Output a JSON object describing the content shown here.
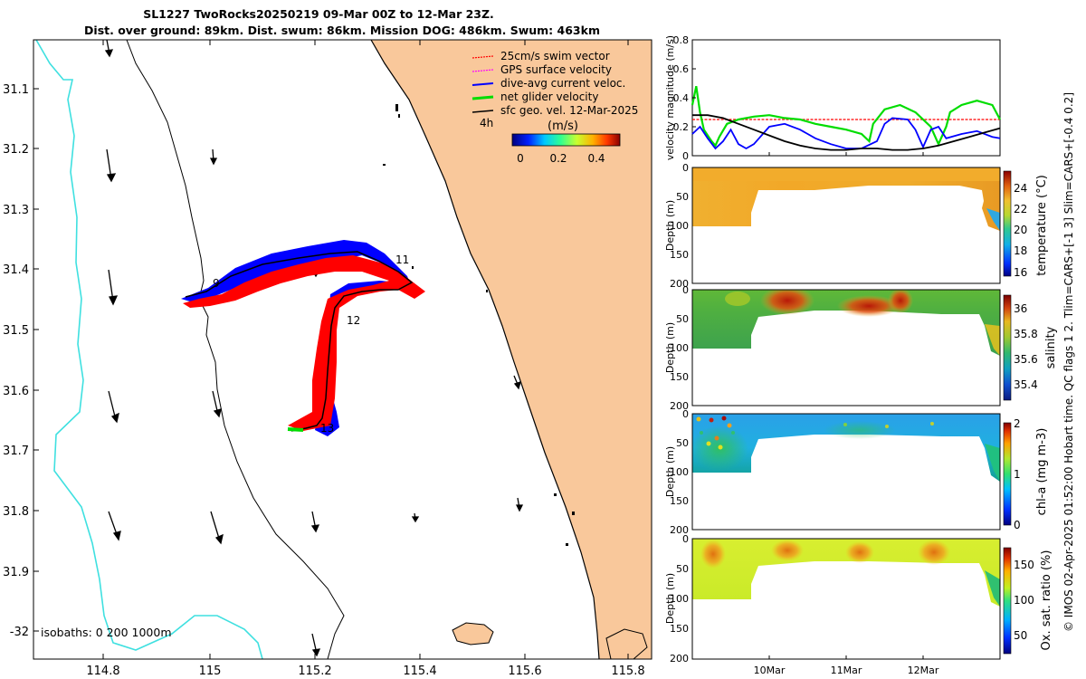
{
  "title_line1": "SL1227 TwoRocks20250219 09-Mar 00Z to 12-Mar 23Z.",
  "title_line2": "Dist. over ground: 89km. Dist. swum: 86km. Mission DOG: 486km. Swum: 463km",
  "side_text": "© IMOS 02-Apr-2025 01:52:00 Hobart time. QC flags 1  2. Tlim=CARS+[-1 3] Slim=CARS+[-0.4 0.2]",
  "colors": {
    "land": "#f9c89b",
    "coast_line": "#000000",
    "isobath": "#3fe0e0",
    "track_red": "#ff0000",
    "track_blue": "#0000ff",
    "swim_vector": "#ff0000",
    "gps_velocity": "#ff00ff",
    "dive_avg": "#0000ff",
    "net_glider": "#00dd00",
    "sfc_geo": "#000000"
  },
  "map": {
    "x_ticks": [
      "114.8",
      "115",
      "115.2",
      "115.4",
      "115.6",
      "115.8"
    ],
    "y_ticks": [
      "31.1",
      "31.2",
      "31.3",
      "31.4",
      "31.5",
      "31.6",
      "31.7",
      "31.8",
      "31.9",
      "-32"
    ],
    "legend": [
      {
        "label": "25cm/s swim vector",
        "color": "#ff0000"
      },
      {
        "label": "GPS surface velocity",
        "color": "#ff00ff"
      },
      {
        "label": "dive-avg current veloc.",
        "color": "#0000ff"
      },
      {
        "label": "net glider velocity",
        "color": "#00dd00"
      },
      {
        "label": "sfc geo. vel. 12-Mar-2025",
        "color": "#000000"
      }
    ],
    "legend_4h": "4h",
    "colorbar_label": "(m/s)",
    "colorbar_ticks": [
      "0",
      "0.2",
      "0.4"
    ],
    "isobath_label": "isobaths: 0   200  1000m",
    "day_markers": [
      "9",
      "11",
      "12",
      "13"
    ]
  },
  "chart_data": [
    {
      "type": "line",
      "title": "velocity magnitude",
      "ylabel": "velocity magnitude (m/s)",
      "ylim": [
        0,
        0.8
      ],
      "yticks": [
        "0",
        "0.2",
        "0.4",
        "0.6",
        "0.8"
      ],
      "xlim_days": [
        9.0,
        13.0
      ],
      "xticks": [
        "10Mar",
        "11Mar",
        "12Mar"
      ],
      "series": [
        {
          "name": "swim speed",
          "color": "#ff0000",
          "x": [
            9.0,
            13.0
          ],
          "y": [
            0.25,
            0.25
          ]
        },
        {
          "name": "net glider velocity",
          "color": "#00dd00",
          "x": [
            9.0,
            9.05,
            9.1,
            9.15,
            9.2,
            9.25,
            9.3,
            9.35,
            9.45,
            9.6,
            9.8,
            10.0,
            10.2,
            10.4,
            10.6,
            10.8,
            11.0,
            11.2,
            11.3,
            11.35,
            11.5,
            11.7,
            11.9,
            12.1,
            12.2,
            12.3,
            12.35,
            12.5,
            12.7,
            12.9,
            13.0
          ],
          "y": [
            0.35,
            0.48,
            0.3,
            0.18,
            0.14,
            0.1,
            0.07,
            0.13,
            0.22,
            0.25,
            0.27,
            0.28,
            0.26,
            0.25,
            0.22,
            0.2,
            0.18,
            0.15,
            0.1,
            0.22,
            0.32,
            0.35,
            0.3,
            0.2,
            0.08,
            0.2,
            0.3,
            0.35,
            0.38,
            0.35,
            0.25
          ]
        },
        {
          "name": "dive-avg current",
          "color": "#0000ff",
          "x": [
            9.0,
            9.1,
            9.2,
            9.3,
            9.4,
            9.5,
            9.6,
            9.7,
            9.8,
            10.0,
            10.2,
            10.4,
            10.6,
            10.8,
            11.0,
            11.2,
            11.4,
            11.5,
            11.6,
            11.8,
            11.9,
            12.0,
            12.1,
            12.2,
            12.3,
            12.5,
            12.7,
            12.9,
            13.0
          ],
          "y": [
            0.15,
            0.2,
            0.12,
            0.05,
            0.1,
            0.18,
            0.08,
            0.05,
            0.08,
            0.2,
            0.22,
            0.18,
            0.12,
            0.08,
            0.05,
            0.05,
            0.1,
            0.22,
            0.26,
            0.25,
            0.18,
            0.06,
            0.18,
            0.2,
            0.12,
            0.15,
            0.17,
            0.13,
            0.12
          ]
        },
        {
          "name": "sfc geo. vel.",
          "color": "#000000",
          "x": [
            9.0,
            9.2,
            9.4,
            9.6,
            9.8,
            10.0,
            10.2,
            10.4,
            10.6,
            10.8,
            11.0,
            11.2,
            11.4,
            11.6,
            11.8,
            12.0,
            12.2,
            12.4,
            12.6,
            12.8,
            13.0
          ],
          "y": [
            0.28,
            0.28,
            0.26,
            0.22,
            0.18,
            0.14,
            0.1,
            0.07,
            0.05,
            0.04,
            0.04,
            0.05,
            0.05,
            0.04,
            0.04,
            0.05,
            0.07,
            0.1,
            0.13,
            0.16,
            0.19
          ]
        }
      ]
    },
    {
      "type": "heatmap",
      "name": "temperature",
      "ylabel": "Depth (m)",
      "cbar_label": "temperature (°C)",
      "yticks": [
        "0",
        "50",
        "100",
        "150",
        "200"
      ],
      "cticks": [
        "24",
        "22",
        "20",
        "18",
        "16"
      ],
      "clim": [
        15.5,
        25.5
      ],
      "profile_depth_m": [
        100,
        100,
        100,
        40,
        40,
        30,
        30,
        30,
        30,
        35,
        35,
        40,
        40,
        60,
        115
      ],
      "profile_days": [
        9.0,
        9.5,
        9.75,
        9.8,
        10.2,
        10.6,
        11.0,
        11.4,
        11.8,
        12.2,
        12.4,
        12.6,
        12.75,
        12.85,
        13.0
      ]
    },
    {
      "type": "heatmap",
      "name": "salinity",
      "ylabel": "Depth (m)",
      "cbar_label": "salinity",
      "yticks": [
        "0",
        "50",
        "100",
        "150",
        "200"
      ],
      "cticks": [
        "36",
        "35.8",
        "35.6",
        "35.4"
      ],
      "clim": [
        35.25,
        36.15
      ]
    },
    {
      "type": "heatmap",
      "name": "chl-a",
      "ylabel": "Depth (m)",
      "cbar_label": "chl-a (mg m-3)",
      "yticks": [
        "0",
        "50",
        "100",
        "150",
        "200"
      ],
      "cticks": [
        "2",
        "1",
        "0"
      ],
      "clim": [
        0,
        2
      ]
    },
    {
      "type": "heatmap",
      "name": "oxygen saturation",
      "ylabel": "Depth (m)",
      "cbar_label": "Ox. sat. ratio (%)",
      "yticks": [
        "0",
        "50",
        "100",
        "150",
        "200"
      ],
      "cticks": [
        "150",
        "100",
        "50"
      ],
      "clim": [
        25,
        175
      ]
    }
  ]
}
